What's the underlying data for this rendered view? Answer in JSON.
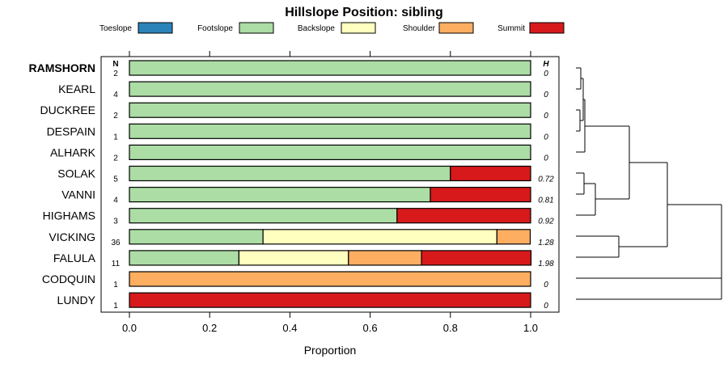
{
  "chart_data": {
    "type": "bar",
    "stacked": true,
    "orientation": "horizontal",
    "title": "Hillslope Position: sibling",
    "xlabel": "Proportion",
    "ylabel": "",
    "xlim": [
      0,
      1
    ],
    "x_ticks": [
      "0.0",
      "0.2",
      "0.4",
      "0.6",
      "0.8",
      "1.0"
    ],
    "legend_position": "top",
    "n_header": "N",
    "h_header": "H",
    "highlighted_category": "RAMSHORN",
    "series": [
      {
        "name": "Toeslope",
        "color": "#2b83ba",
        "values": [
          0,
          0,
          0,
          0,
          0,
          0,
          0,
          0,
          0,
          0,
          0,
          0
        ]
      },
      {
        "name": "Footslope",
        "color": "#abdda4",
        "values": [
          1,
          1,
          1,
          1,
          1,
          0.8,
          0.75,
          0.667,
          0.333,
          0.273,
          0,
          0
        ]
      },
      {
        "name": "Backslope",
        "color": "#ffffbf",
        "values": [
          0,
          0,
          0,
          0,
          0,
          0,
          0,
          0,
          0.583,
          0.273,
          0,
          0
        ]
      },
      {
        "name": "Shoulder",
        "color": "#fdae61",
        "values": [
          0,
          0,
          0,
          0,
          0,
          0,
          0,
          0,
          0.083,
          0.182,
          1,
          0
        ]
      },
      {
        "name": "Summit",
        "color": "#d7191c",
        "values": [
          0,
          0,
          0,
          0,
          0,
          0.2,
          0.25,
          0.333,
          0,
          0.273,
          0,
          1
        ]
      }
    ],
    "rows": [
      {
        "name": "RAMSHORN",
        "n": "2",
        "h": "0"
      },
      {
        "name": "KEARL",
        "n": "4",
        "h": "0"
      },
      {
        "name": "DUCKREE",
        "n": "2",
        "h": "0"
      },
      {
        "name": "DESPAIN",
        "n": "1",
        "h": "0"
      },
      {
        "name": "ALHARK",
        "n": "2",
        "h": "0"
      },
      {
        "name": "SOLAK",
        "n": "5",
        "h": "0.72"
      },
      {
        "name": "VANNI",
        "n": "4",
        "h": "0.81"
      },
      {
        "name": "HIGHAMS",
        "n": "3",
        "h": "0.92"
      },
      {
        "name": "VICKING",
        "n": "36",
        "h": "1.28"
      },
      {
        "name": "FALULA",
        "n": "11",
        "h": "1.98"
      },
      {
        "name": "CODQUIN",
        "n": "1",
        "h": "0"
      },
      {
        "name": "LUNDY",
        "n": "1",
        "h": "0"
      }
    ]
  }
}
